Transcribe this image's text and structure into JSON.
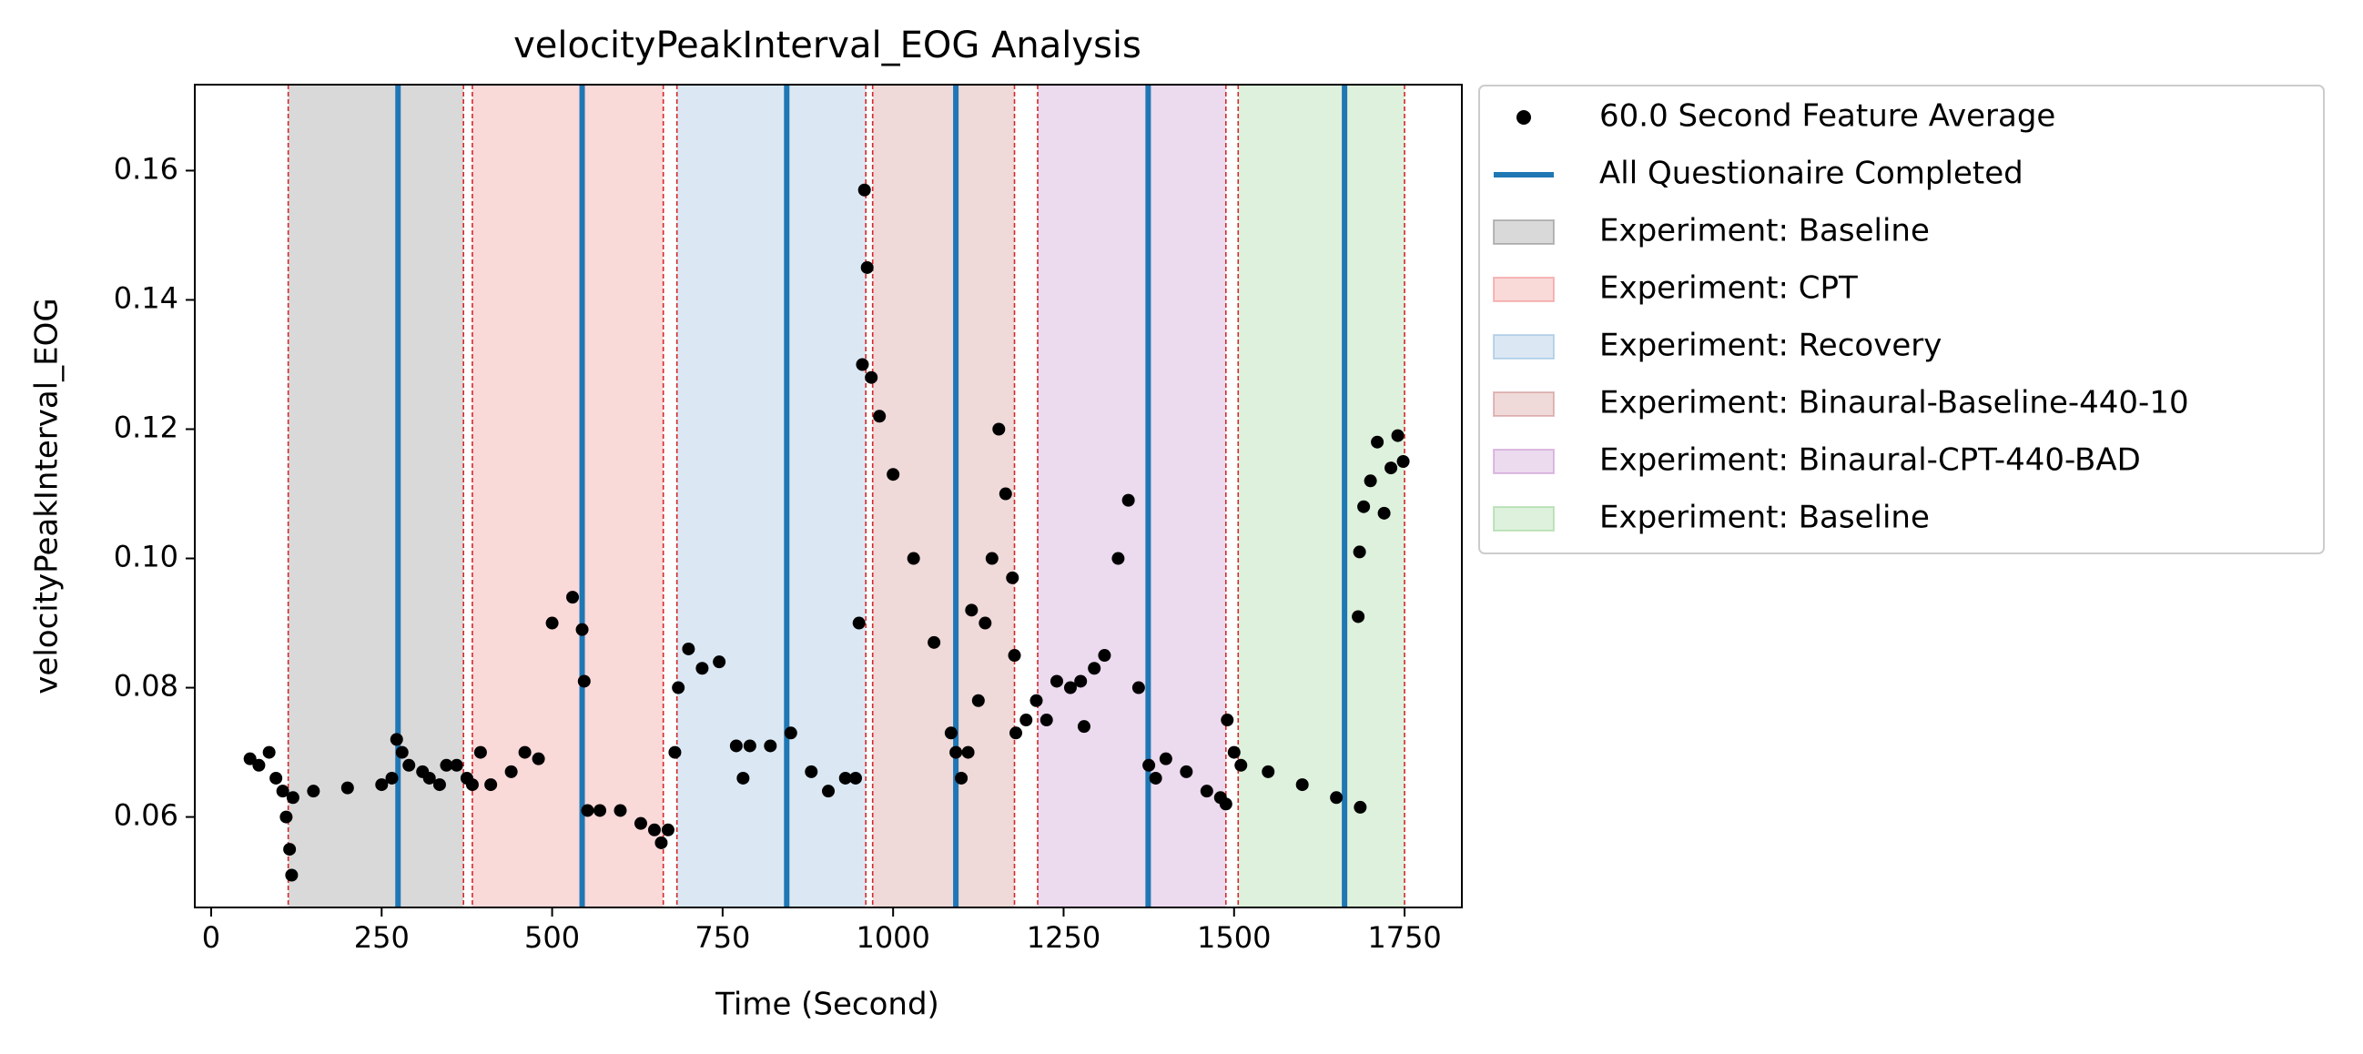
{
  "chart_data": {
    "type": "scatter",
    "title": "velocityPeakInterval_EOG Analysis",
    "x_label": "Time (Second)",
    "y_label": "velocityPeakInterval_EOG",
    "xlim": [
      -24,
      1834
    ],
    "ylim": [
      0.046,
      0.1733
    ],
    "xticks": [
      0,
      250,
      500,
      750,
      1000,
      1250,
      1500,
      1750
    ],
    "yticks": [
      0.06,
      0.08,
      {
        "value": 0.1,
        "label": "0.10"
      },
      0.12,
      0.14,
      0.16
    ],
    "legend": "outside upper right",
    "series": [
      {
        "name": "60.0 Second Feature Average",
        "color": "#000000",
        "x": [
          57,
          70,
          85,
          95,
          105,
          110,
          115,
          118,
          120,
          150,
          200,
          250,
          265,
          272,
          280,
          290,
          310,
          320,
          335,
          345,
          360,
          375,
          383,
          395,
          410,
          440,
          460,
          480,
          500,
          530,
          544,
          547,
          552,
          570,
          600,
          630,
          650,
          660,
          670,
          680,
          685,
          700,
          720,
          745,
          770,
          780,
          790,
          820,
          850,
          880,
          905,
          930,
          945,
          950,
          955,
          958,
          962,
          968,
          980,
          1000,
          1030,
          1060,
          1085,
          1092,
          1100,
          1110,
          1115,
          1125,
          1135,
          1145,
          1155,
          1165,
          1175,
          1178,
          1180,
          1195,
          1210,
          1225,
          1240,
          1260,
          1275,
          1280,
          1295,
          1310,
          1330,
          1345,
          1360,
          1375,
          1385,
          1400,
          1430,
          1460,
          1480,
          1488,
          1490,
          1500,
          1510,
          1550,
          1600,
          1650,
          1685,
          1682,
          1684,
          1690,
          1700,
          1710,
          1720,
          1730,
          1740,
          1748
        ],
        "y": [
          0.069,
          0.068,
          0.07,
          0.066,
          0.064,
          0.06,
          0.055,
          0.051,
          0.063,
          0.064,
          0.0645,
          0.065,
          0.066,
          0.072,
          0.07,
          0.068,
          0.067,
          0.066,
          0.065,
          0.068,
          0.068,
          0.066,
          0.065,
          0.07,
          0.065,
          0.067,
          0.07,
          0.069,
          0.09,
          0.094,
          0.089,
          0.081,
          0.061,
          0.061,
          0.061,
          0.059,
          0.058,
          0.056,
          0.058,
          0.07,
          0.08,
          0.086,
          0.083,
          0.084,
          0.071,
          0.066,
          0.071,
          0.071,
          0.073,
          0.067,
          0.064,
          0.066,
          0.066,
          0.09,
          0.13,
          0.157,
          0.145,
          0.128,
          0.122,
          0.113,
          0.1,
          0.087,
          0.073,
          0.07,
          0.066,
          0.07,
          0.092,
          0.078,
          0.09,
          0.1,
          0.12,
          0.11,
          0.097,
          0.085,
          0.073,
          0.075,
          0.078,
          0.075,
          0.081,
          0.08,
          0.081,
          0.074,
          0.083,
          0.085,
          0.1,
          0.109,
          0.08,
          0.068,
          0.066,
          0.069,
          0.067,
          0.064,
          0.063,
          0.062,
          0.075,
          0.07,
          0.068,
          0.067,
          0.065,
          0.063,
          0.0615,
          0.091,
          0.101,
          0.108,
          0.112,
          0.118,
          0.107,
          0.114,
          0.119,
          0.115
        ]
      }
    ],
    "vlines": {
      "name": "All Questionaire Completed",
      "color": "#1f77b4",
      "x": [
        274,
        544,
        844,
        1092,
        1374,
        1662
      ]
    },
    "boundary_color": "#d62728",
    "regions": [
      {
        "name": "Experiment: Baseline",
        "color": "#808080",
        "start": 113,
        "end": 370
      },
      {
        "name": "Experiment: CPT",
        "color": "#f08080",
        "start": 383,
        "end": 663
      },
      {
        "name": "Experiment: Recovery",
        "color": "#88b4db",
        "start": 683,
        "end": 960
      },
      {
        "name": "Experiment: Binaural-Baseline-440-10",
        "color": "#c98282",
        "start": 970,
        "end": 1178
      },
      {
        "name": "Experiment: Binaural-CPT-440-BAD",
        "color": "#bf85c9",
        "start": 1212,
        "end": 1488
      },
      {
        "name": "Experiment: Baseline",
        "color": "#8fd08a",
        "start": 1506,
        "end": 1750
      }
    ]
  }
}
